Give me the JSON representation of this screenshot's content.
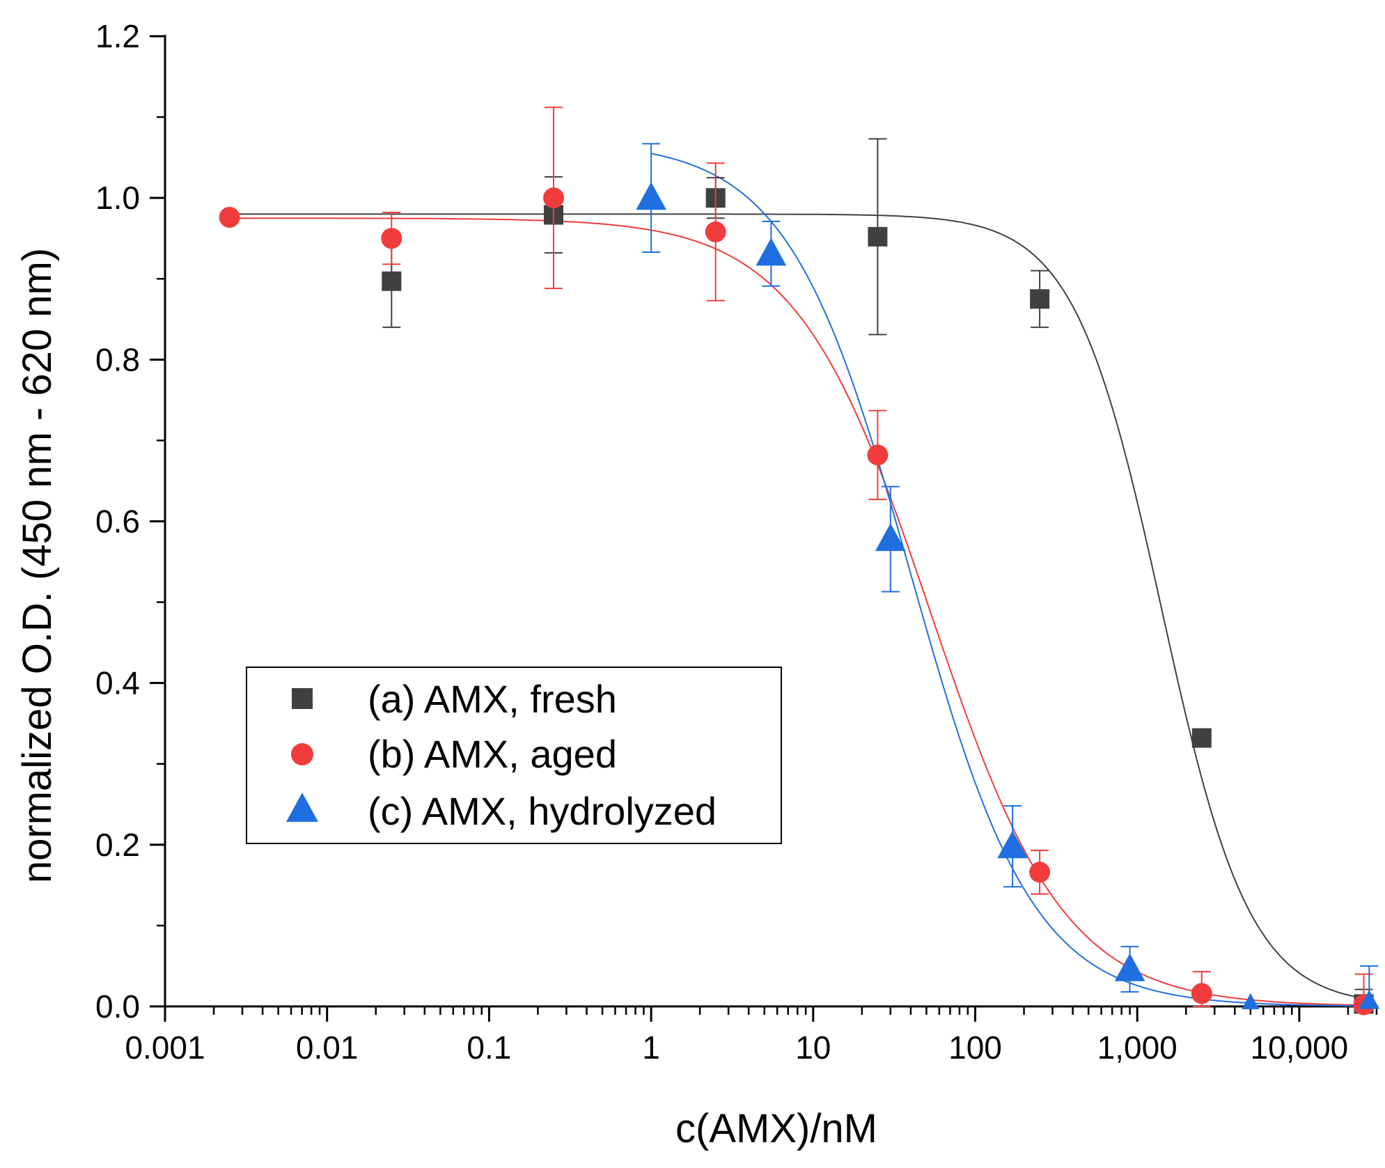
{
  "chart_data": {
    "type": "scatter",
    "title": "",
    "xlabel": "c(AMX)/nM",
    "ylabel": "normalized O.D. (450 nm - 620 nm)",
    "xscale": "log",
    "xlim": [
      0.001,
      30000
    ],
    "ylim": [
      0,
      1.2
    ],
    "x_ticks": [
      0.001,
      0.01,
      0.1,
      1,
      10,
      100,
      1000,
      10000
    ],
    "x_tick_labels": [
      "0.001",
      "0.01",
      "0.1",
      "1",
      "10",
      "100",
      "1,000",
      "10,000"
    ],
    "y_ticks": [
      0,
      0.2,
      0.4,
      0.6,
      0.8,
      1.0,
      1.2
    ],
    "y_tick_labels": [
      "0.0",
      "0.2",
      "0.4",
      "0.6",
      "0.8",
      "1.0",
      "1.2"
    ],
    "grid": false,
    "legend_position": "center-left",
    "series": [
      {
        "name": "(a) AMX, fresh",
        "marker": "square",
        "color": "#404040",
        "points": [
          {
            "x": 0.025,
            "y": 0.897,
            "err": 0.057
          },
          {
            "x": 0.25,
            "y": 0.979,
            "err": 0.047
          },
          {
            "x": 2.5,
            "y": 1.0,
            "err": 0.025
          },
          {
            "x": 25,
            "y": 0.952,
            "err": 0.121
          },
          {
            "x": 250,
            "y": 0.875,
            "err": 0.035
          },
          {
            "x": 2500,
            "y": 0.332,
            "err": 0.0
          },
          {
            "x": 25000,
            "y": 0.003,
            "err": 0.018
          }
        ],
        "fit": {
          "top": 0.98,
          "bottom": 0.0,
          "ec50": 1420,
          "hill": 1.6
        }
      },
      {
        "name": "(b) AMX, aged",
        "marker": "circle",
        "color": "#f03c3c",
        "points": [
          {
            "x": 0.0025,
            "y": 0.976,
            "err": 0.0
          },
          {
            "x": 0.025,
            "y": 0.95,
            "err": 0.032
          },
          {
            "x": 0.25,
            "y": 1.0,
            "err": 0.112
          },
          {
            "x": 2.5,
            "y": 0.958,
            "err": 0.085
          },
          {
            "x": 25,
            "y": 0.682,
            "err": 0.055
          },
          {
            "x": 250,
            "y": 0.166,
            "err": 0.027
          },
          {
            "x": 2500,
            "y": 0.016,
            "err": 0.027
          },
          {
            "x": 25000,
            "y": 0.002,
            "err": 0.038
          }
        ],
        "fit": {
          "top": 0.975,
          "bottom": 0.0,
          "ec50": 53,
          "hill": 1.05
        }
      },
      {
        "name": "(c) AMX, hydrolyzed",
        "marker": "triangle",
        "color": "#1f6fe0",
        "points": [
          {
            "x": 1,
            "y": 1.0,
            "err": 0.067
          },
          {
            "x": 5.5,
            "y": 0.931,
            "err": 0.04
          },
          {
            "x": 30,
            "y": 0.578,
            "err": 0.065
          },
          {
            "x": 170,
            "y": 0.198,
            "err": 0.05
          },
          {
            "x": 900,
            "y": 0.046,
            "err": 0.028
          },
          {
            "x": 5000,
            "y": 0.005,
            "err": 0.0
          },
          {
            "x": 27000,
            "y": 0.007,
            "err": 0.043
          }
        ],
        "fit": {
          "top": 1.07,
          "bottom": 0.0,
          "ec50": 40,
          "hill": 1.15,
          "xmin": 1
        }
      }
    ]
  }
}
